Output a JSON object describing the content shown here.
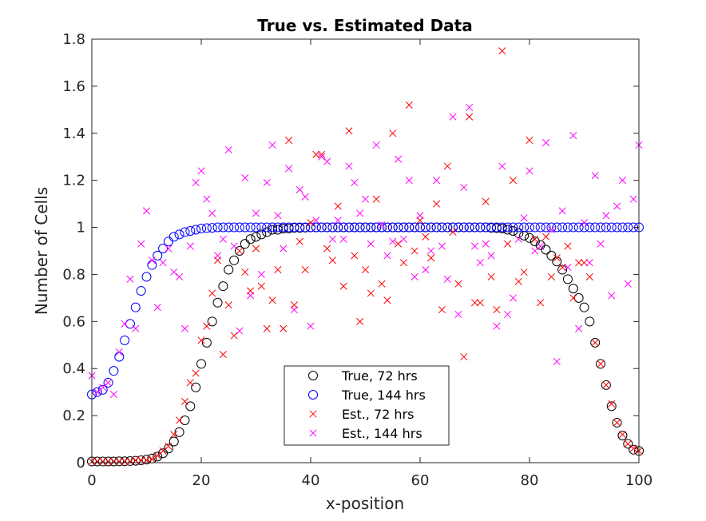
{
  "chart_data": {
    "type": "scatter",
    "title": "True vs. Estimated Data",
    "xlabel": "x-position",
    "ylabel": "Number of Cells",
    "xlim": [
      0,
      100
    ],
    "ylim": [
      0,
      1.8
    ],
    "xticks": [
      0,
      20,
      40,
      60,
      80,
      100
    ],
    "yticks": [
      0,
      0.2,
      0.4,
      0.6,
      0.8,
      1,
      1.2,
      1.4,
      1.6,
      1.8
    ],
    "xtick_labels": [
      "0",
      "20",
      "40",
      "60",
      "80",
      "100"
    ],
    "ytick_labels": [
      "0",
      "0.2",
      "0.4",
      "0.6",
      "0.8",
      "1",
      "1.2",
      "1.4",
      "1.6",
      "1.8"
    ],
    "grid": false,
    "legend_position": "bottom-center",
    "series": [
      {
        "name": "True, 72 hrs",
        "marker": "circle",
        "color": "#000000",
        "x": [
          0,
          1,
          2,
          3,
          4,
          5,
          6,
          7,
          8,
          9,
          10,
          11,
          12,
          13,
          14,
          15,
          16,
          17,
          18,
          19,
          20,
          21,
          22,
          23,
          24,
          25,
          26,
          27,
          28,
          29,
          30,
          31,
          32,
          33,
          34,
          35,
          36,
          37,
          38,
          39,
          40,
          41,
          42,
          43,
          44,
          45,
          46,
          47,
          48,
          49,
          50,
          51,
          52,
          53,
          54,
          55,
          56,
          57,
          58,
          59,
          60,
          61,
          62,
          63,
          64,
          65,
          66,
          67,
          68,
          69,
          70,
          71,
          72,
          73,
          74,
          75,
          76,
          77,
          78,
          79,
          80,
          81,
          82,
          83,
          84,
          85,
          86,
          87,
          88,
          89,
          90,
          91,
          92,
          93,
          94,
          95,
          96,
          97,
          98,
          99,
          100
        ],
        "y": [
          0.005,
          0.005,
          0.005,
          0.005,
          0.005,
          0.006,
          0.006,
          0.007,
          0.008,
          0.01,
          0.013,
          0.018,
          0.026,
          0.04,
          0.06,
          0.09,
          0.13,
          0.18,
          0.24,
          0.32,
          0.42,
          0.51,
          0.6,
          0.68,
          0.75,
          0.82,
          0.86,
          0.9,
          0.93,
          0.95,
          0.96,
          0.97,
          0.98,
          0.99,
          0.99,
          0.995,
          0.995,
          0.998,
          0.998,
          0.999,
          1,
          1,
          1,
          1,
          1,
          1,
          1,
          1,
          1,
          1,
          1,
          1,
          1,
          1,
          1,
          1,
          1,
          1,
          1,
          1,
          1,
          1,
          1,
          1,
          1,
          1,
          1,
          1,
          1,
          1,
          1,
          1,
          1,
          0.998,
          0.997,
          0.995,
          0.99,
          0.985,
          0.975,
          0.965,
          0.955,
          0.94,
          0.925,
          0.905,
          0.88,
          0.855,
          0.82,
          0.78,
          0.74,
          0.7,
          0.66,
          0.6,
          0.51,
          0.42,
          0.33,
          0.24,
          0.17,
          0.115,
          0.08,
          0.055,
          0.05
        ]
      },
      {
        "name": "True, 144 hrs",
        "marker": "circle",
        "color": "#0000ff",
        "x": [
          0,
          1,
          2,
          3,
          4,
          5,
          6,
          7,
          8,
          9,
          10,
          11,
          12,
          13,
          14,
          15,
          16,
          17,
          18,
          19,
          20,
          21,
          22,
          23,
          24,
          25,
          26,
          27,
          28,
          29,
          30,
          31,
          32,
          33,
          34,
          35,
          36,
          37,
          38,
          39,
          40,
          41,
          42,
          43,
          44,
          45,
          46,
          47,
          48,
          49,
          50,
          51,
          52,
          53,
          54,
          55,
          56,
          57,
          58,
          59,
          60,
          61,
          62,
          63,
          64,
          65,
          66,
          67,
          68,
          69,
          70,
          71,
          72,
          73,
          74,
          75,
          76,
          77,
          78,
          79,
          80,
          81,
          82,
          83,
          84,
          85,
          86,
          87,
          88,
          89,
          90,
          91,
          92,
          93,
          94,
          95,
          96,
          97,
          98,
          99,
          100
        ],
        "y": [
          0.29,
          0.3,
          0.31,
          0.34,
          0.39,
          0.45,
          0.52,
          0.59,
          0.66,
          0.73,
          0.79,
          0.84,
          0.88,
          0.91,
          0.94,
          0.96,
          0.97,
          0.98,
          0.985,
          0.99,
          0.995,
          0.997,
          0.998,
          1,
          1,
          1,
          1,
          1,
          1,
          1,
          1,
          1,
          1,
          1,
          1,
          1,
          1,
          1,
          1,
          1,
          1,
          1,
          1,
          1,
          1,
          1,
          1,
          1,
          1,
          1,
          1,
          1,
          1,
          1,
          1,
          1,
          1,
          1,
          1,
          1,
          1,
          1,
          1,
          1,
          1,
          1,
          1,
          1,
          1,
          1,
          1,
          1,
          1,
          1,
          1,
          1,
          1,
          1,
          1,
          1,
          1,
          1,
          1,
          1,
          1,
          1,
          1,
          1,
          1,
          1,
          1,
          1,
          1,
          1,
          1,
          1,
          1,
          1,
          1,
          1,
          1
        ]
      },
      {
        "name": "Est., 72 hrs",
        "marker": "x",
        "color": "#ff0000",
        "x": [
          0,
          1,
          2,
          3,
          4,
          5,
          6,
          7,
          8,
          9,
          10,
          11,
          12,
          13,
          14,
          15,
          16,
          17,
          18,
          19,
          20,
          21,
          22,
          23,
          24,
          25,
          26,
          27,
          28,
          29,
          30,
          31,
          32,
          33,
          34,
          35,
          36,
          37,
          38,
          39,
          40,
          41,
          42,
          43,
          44,
          45,
          46,
          47,
          48,
          49,
          50,
          51,
          52,
          53,
          54,
          55,
          56,
          57,
          58,
          59,
          60,
          61,
          62,
          63,
          64,
          65,
          66,
          67,
          68,
          69,
          70,
          71,
          72,
          73,
          74,
          75,
          76,
          77,
          78,
          79,
          80,
          81,
          82,
          83,
          84,
          85,
          86,
          87,
          88,
          89,
          90,
          91,
          92,
          93,
          94,
          95,
          96,
          97,
          98,
          99,
          100
        ],
        "y": [
          0.005,
          0.005,
          0.005,
          0.005,
          0.005,
          0.005,
          0.005,
          0.005,
          0.01,
          0.01,
          0.01,
          0.015,
          0.03,
          0.05,
          0.07,
          0.12,
          0.18,
          0.26,
          0.34,
          0.38,
          0.52,
          0.58,
          0.72,
          0.86,
          0.46,
          0.67,
          0.54,
          0.9,
          0.81,
          0.73,
          0.91,
          0.75,
          0.57,
          0.69,
          0.82,
          0.57,
          1.37,
          0.67,
          0.94,
          0.82,
          1.02,
          1.31,
          1.31,
          0.91,
          0.86,
          1.09,
          0.75,
          1.41,
          0.88,
          0.6,
          0.82,
          0.72,
          1.12,
          0.76,
          0.69,
          1.4,
          0.93,
          0.85,
          1.52,
          0.9,
          1.03,
          0.96,
          0.87,
          1.1,
          0.65,
          1.26,
          0.98,
          0.76,
          0.45,
          1.47,
          0.68,
          0.68,
          1.11,
          0.79,
          0.65,
          1.75,
          0.93,
          1.2,
          0.77,
          0.81,
          1.37,
          0.95,
          0.68,
          0.96,
          0.79,
          0.87,
          0.83,
          0.92,
          0.7,
          0.85,
          0.85,
          0.79,
          0.51,
          0.42,
          0.33,
          0.25,
          0.17,
          0.12,
          0.08,
          0.06,
          0.05
        ]
      },
      {
        "name": "Est., 144 hrs",
        "marker": "x",
        "color": "#ff00ff",
        "x": [
          0,
          1,
          2,
          3,
          4,
          5,
          6,
          7,
          8,
          9,
          10,
          11,
          12,
          13,
          14,
          15,
          16,
          17,
          18,
          19,
          20,
          21,
          22,
          23,
          24,
          25,
          26,
          27,
          28,
          29,
          30,
          31,
          32,
          33,
          34,
          35,
          36,
          37,
          38,
          39,
          40,
          41,
          42,
          43,
          44,
          45,
          46,
          47,
          48,
          49,
          50,
          51,
          52,
          53,
          54,
          55,
          56,
          57,
          58,
          59,
          60,
          61,
          62,
          63,
          64,
          65,
          66,
          67,
          68,
          69,
          70,
          71,
          72,
          73,
          74,
          75,
          76,
          77,
          78,
          79,
          80,
          81,
          82,
          83,
          84,
          85,
          86,
          87,
          88,
          89,
          90,
          91,
          92,
          93,
          94,
          95,
          96,
          97,
          98,
          99,
          100
        ],
        "y": [
          0.37,
          0.3,
          0.32,
          0.34,
          0.29,
          0.47,
          0.59,
          0.78,
          0.57,
          0.93,
          1.07,
          0.86,
          0.66,
          0.85,
          0.91,
          0.81,
          0.79,
          0.57,
          0.92,
          1.19,
          1.24,
          1.12,
          1.06,
          0.88,
          0.95,
          1.33,
          0.92,
          0.56,
          1.21,
          0.71,
          1.06,
          0.8,
          1.19,
          1.35,
          1.05,
          0.91,
          1.25,
          0.65,
          1.16,
          1.13,
          0.58,
          1.03,
          1.3,
          1.28,
          0.95,
          1.03,
          0.95,
          1.26,
          1.19,
          1.06,
          1.12,
          0.93,
          1.35,
          1.01,
          0.88,
          0.94,
          1.29,
          0.95,
          1.2,
          0.79,
          1.05,
          0.82,
          0.9,
          1.2,
          0.92,
          0.78,
          1.47,
          0.63,
          1.17,
          1.51,
          0.92,
          0.85,
          0.93,
          0.88,
          0.58,
          1.26,
          0.63,
          0.7,
          0.95,
          1.04,
          1.24,
          0.9,
          0.92,
          1.36,
          0.99,
          0.43,
          1.07,
          0.83,
          1.39,
          0.57,
          1.02,
          0.85,
          1.22,
          0.93,
          1.05,
          0.71,
          1.09,
          1.2,
          0.76,
          1.12,
          1.35
        ]
      }
    ]
  }
}
